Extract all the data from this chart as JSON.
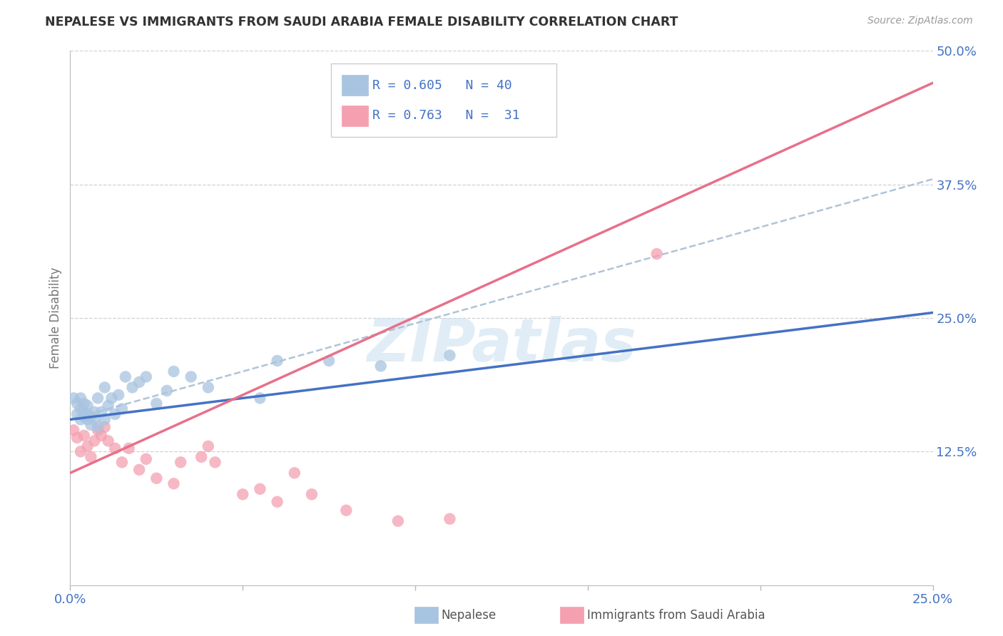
{
  "title": "NEPALESE VS IMMIGRANTS FROM SAUDI ARABIA FEMALE DISABILITY CORRELATION CHART",
  "source": "Source: ZipAtlas.com",
  "ylabel": "Female Disability",
  "xlim": [
    0.0,
    0.25
  ],
  "ylim": [
    0.0,
    0.5
  ],
  "xticks": [
    0.0,
    0.05,
    0.1,
    0.15,
    0.2,
    0.25
  ],
  "yticks": [
    0.0,
    0.125,
    0.25,
    0.375,
    0.5
  ],
  "xticklabels": [
    "0.0%",
    "",
    "",
    "",
    "",
    "25.0%"
  ],
  "yticklabels": [
    "",
    "12.5%",
    "25.0%",
    "37.5%",
    "50.0%"
  ],
  "nepalese_R": 0.605,
  "nepalese_N": 40,
  "saudi_R": 0.763,
  "saudi_N": 31,
  "nepalese_color": "#a8c4e0",
  "saudi_color": "#f4a0b0",
  "nepalese_line_color": "#4472c4",
  "saudi_line_color": "#e8708a",
  "nepalese_scatter_x": [
    0.001,
    0.002,
    0.002,
    0.003,
    0.003,
    0.003,
    0.004,
    0.004,
    0.004,
    0.005,
    0.005,
    0.005,
    0.006,
    0.006,
    0.007,
    0.007,
    0.008,
    0.008,
    0.009,
    0.01,
    0.01,
    0.011,
    0.012,
    0.013,
    0.014,
    0.015,
    0.016,
    0.018,
    0.02,
    0.022,
    0.025,
    0.028,
    0.03,
    0.035,
    0.04,
    0.055,
    0.06,
    0.075,
    0.09,
    0.11
  ],
  "nepalese_scatter_y": [
    0.175,
    0.16,
    0.17,
    0.155,
    0.165,
    0.175,
    0.158,
    0.162,
    0.17,
    0.155,
    0.16,
    0.168,
    0.15,
    0.158,
    0.155,
    0.162,
    0.148,
    0.175,
    0.162,
    0.155,
    0.185,
    0.168,
    0.175,
    0.16,
    0.178,
    0.165,
    0.195,
    0.185,
    0.19,
    0.195,
    0.17,
    0.182,
    0.2,
    0.195,
    0.185,
    0.175,
    0.21,
    0.21,
    0.205,
    0.215
  ],
  "saudi_scatter_x": [
    0.001,
    0.002,
    0.003,
    0.004,
    0.005,
    0.006,
    0.007,
    0.008,
    0.009,
    0.01,
    0.011,
    0.013,
    0.015,
    0.017,
    0.02,
    0.022,
    0.025,
    0.03,
    0.032,
    0.038,
    0.04,
    0.042,
    0.05,
    0.055,
    0.06,
    0.065,
    0.07,
    0.08,
    0.095,
    0.11,
    0.17
  ],
  "saudi_scatter_y": [
    0.145,
    0.138,
    0.125,
    0.14,
    0.13,
    0.12,
    0.135,
    0.145,
    0.14,
    0.148,
    0.135,
    0.128,
    0.115,
    0.128,
    0.108,
    0.118,
    0.1,
    0.095,
    0.115,
    0.12,
    0.13,
    0.115,
    0.085,
    0.09,
    0.078,
    0.105,
    0.085,
    0.07,
    0.06,
    0.062,
    0.31
  ],
  "nepalese_line_x": [
    0.0,
    0.25
  ],
  "nepalese_line_y": [
    0.155,
    0.255
  ],
  "saudi_line_x": [
    0.0,
    0.25
  ],
  "saudi_line_y": [
    0.105,
    0.47
  ],
  "dashed_line_x": [
    0.0,
    0.25
  ],
  "dashed_line_y": [
    0.155,
    0.38
  ],
  "watermark": "ZIPatlas",
  "background_color": "#ffffff",
  "grid_color": "#d0d0d0",
  "tick_color": "#4472c4",
  "legend_R_color": "#4472c4",
  "legend_N_color_blue": "#4472c4",
  "legend_N_color_pink": "#e8708a"
}
